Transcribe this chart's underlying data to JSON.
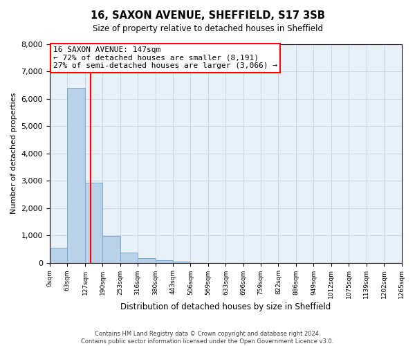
{
  "title": "16, SAXON AVENUE, SHEFFIELD, S17 3SB",
  "subtitle": "Size of property relative to detached houses in Sheffield",
  "xlabel": "Distribution of detached houses by size in Sheffield",
  "ylabel": "Number of detached properties",
  "bar_heights": [
    560,
    6400,
    2920,
    970,
    370,
    175,
    95,
    50,
    0,
    0,
    0,
    0,
    0,
    0,
    0,
    0,
    0,
    0,
    0,
    0
  ],
  "bin_edges": [
    0,
    63,
    127,
    190,
    253,
    316,
    380,
    443,
    506,
    569,
    633,
    696,
    759,
    822,
    886,
    949,
    1012,
    1075,
    1139,
    1202,
    1265
  ],
  "tick_labels": [
    "0sqm",
    "63sqm",
    "127sqm",
    "190sqm",
    "253sqm",
    "316sqm",
    "380sqm",
    "443sqm",
    "506sqm",
    "569sqm",
    "633sqm",
    "696sqm",
    "759sqm",
    "822sqm",
    "886sqm",
    "949sqm",
    "1012sqm",
    "1075sqm",
    "1139sqm",
    "1202sqm",
    "1265sqm"
  ],
  "property_size": 147,
  "bar_color": "#b8d0e8",
  "bar_edge_color": "#7aabcc",
  "vline_color": "red",
  "ylim": [
    0,
    8000
  ],
  "yticks": [
    0,
    1000,
    2000,
    3000,
    4000,
    5000,
    6000,
    7000,
    8000
  ],
  "annotation_title": "16 SAXON AVENUE: 147sqm",
  "annotation_line1": "← 72% of detached houses are smaller (8,191)",
  "annotation_line2": "27% of semi-detached houses are larger (3,066) →",
  "annotation_box_color": "white",
  "annotation_box_edge_color": "red",
  "grid_color": "#c8d8e8",
  "background_color": "#e8f0f8",
  "footer_line1": "Contains HM Land Registry data © Crown copyright and database right 2024.",
  "footer_line2": "Contains public sector information licensed under the Open Government Licence v3.0."
}
